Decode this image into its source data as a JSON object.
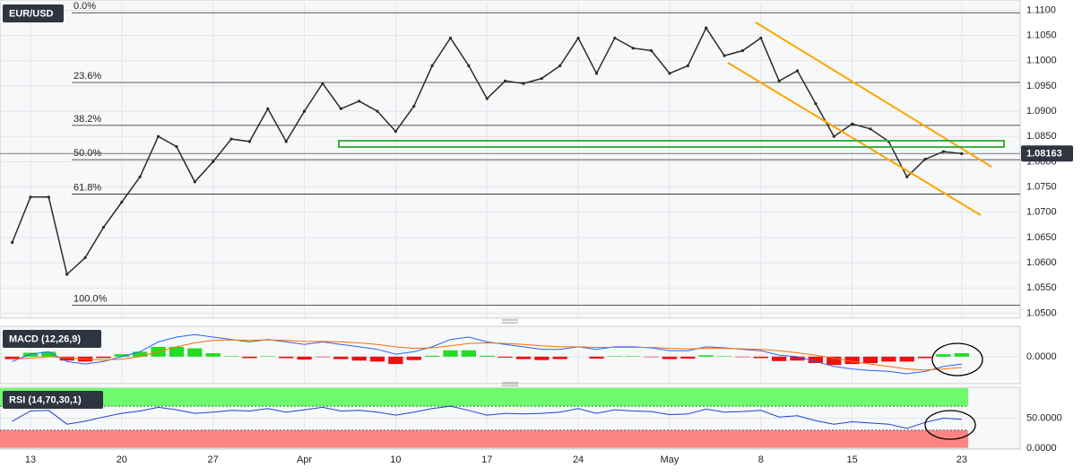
{
  "chart_data": [
    {
      "type": "line",
      "title": "EUR/USD",
      "categories": [
        null,
        "13",
        null,
        null,
        null,
        null,
        "20",
        null,
        null,
        null,
        null,
        "27",
        null,
        null,
        null,
        null,
        "Apr",
        null,
        null,
        null,
        null,
        "10",
        null,
        null,
        null,
        null,
        "17",
        null,
        null,
        null,
        null,
        "24",
        null,
        null,
        null,
        null,
        "May",
        null,
        null,
        null,
        null,
        "8",
        null,
        null,
        null,
        null,
        "15",
        null,
        null,
        null,
        null,
        null,
        "23"
      ],
      "values": [
        1.064,
        1.073,
        1.073,
        1.0577,
        1.061,
        1.067,
        1.072,
        1.077,
        1.085,
        1.083,
        1.076,
        1.08,
        1.0845,
        1.084,
        1.0905,
        1.084,
        1.09,
        1.0955,
        1.0905,
        1.092,
        1.09,
        1.086,
        1.091,
        1.099,
        1.1045,
        1.099,
        1.0925,
        1.096,
        1.0955,
        1.0965,
        1.099,
        1.1045,
        1.0975,
        1.1045,
        1.1025,
        1.102,
        1.0975,
        1.099,
        1.1065,
        1.101,
        1.102,
        1.1045,
        1.096,
        1.098,
        1.0915,
        1.085,
        1.0875,
        1.0865,
        1.084,
        1.077,
        1.0805,
        1.082,
        1.0816
      ],
      "color": "#2b2b2b",
      "ylim": [
        1.049,
        1.1115
      ],
      "yticks": [
        {
          "value": 1.05,
          "label": "1.0500"
        },
        {
          "value": 1.055,
          "label": "1.0550"
        },
        {
          "value": 1.06,
          "label": "1.0600"
        },
        {
          "value": 1.065,
          "label": "1.0650"
        },
        {
          "value": 1.07,
          "label": "1.0700"
        },
        {
          "value": 1.075,
          "label": "1.0750"
        },
        {
          "value": 1.08,
          "label": "1.0800"
        },
        {
          "value": 1.085,
          "label": "1.0850"
        },
        {
          "value": 1.09,
          "label": "1.0900"
        },
        {
          "value": 1.095,
          "label": "1.0950"
        },
        {
          "value": 1.1,
          "label": "1.1000"
        },
        {
          "value": 1.105,
          "label": "1.1050"
        },
        {
          "value": 1.11,
          "label": "1.1100"
        }
      ],
      "grid": true,
      "fib_levels": [
        {
          "label": "0.0%",
          "value": 1.1095
        },
        {
          "label": "23.6%",
          "value": 1.0957
        },
        {
          "label": "38.2%",
          "value": 1.0872
        },
        {
          "label": "50.0%",
          "value": 1.0804
        },
        {
          "label": "61.8%",
          "value": 1.0736
        },
        {
          "label": "100.0%",
          "value": 1.0516
        }
      ],
      "last_price": 1.08163
    },
    {
      "type": "macd",
      "title": "MACD (12,26,9)",
      "series": [
        {
          "color": "#2962ff",
          "values": [
            -0.001,
            0.0005,
            0.001,
            -0.001,
            -0.0015,
            -0.001,
            0,
            0.001,
            0.003,
            0.004,
            0.0045,
            0.004,
            0.0035,
            0.003,
            0.0035,
            0.003,
            0.0025,
            0.003,
            0.0025,
            0.002,
            0.0015,
            0.0005,
            0.001,
            0.002,
            0.0035,
            0.004,
            0.003,
            0.0025,
            0.002,
            0.0015,
            0.0015,
            0.002,
            0.0015,
            0.002,
            0.002,
            0.0018,
            0.0012,
            0.0012,
            0.002,
            0.0018,
            0.0015,
            0.0012,
            0.0003,
            0,
            -0.001,
            -0.002,
            -0.0025,
            -0.0028,
            -0.003,
            -0.0035,
            -0.003,
            -0.002,
            -0.0015
          ]
        },
        {
          "color": "#ff6d00",
          "values": [
            -0.0005,
            -0.0003,
            0,
            -0.0002,
            -0.0005,
            -0.0007,
            -0.0005,
            0,
            0.001,
            0.002,
            0.0028,
            0.0033,
            0.0034,
            0.0033,
            0.0034,
            0.0033,
            0.0031,
            0.0031,
            0.003,
            0.0028,
            0.0025,
            0.002,
            0.0017,
            0.0018,
            0.0022,
            0.0027,
            0.0028,
            0.0027,
            0.0025,
            0.0022,
            0.002,
            0.002,
            0.0019,
            0.0019,
            0.0019,
            0.0019,
            0.0017,
            0.0016,
            0.0017,
            0.0017,
            0.0016,
            0.0015,
            0.0012,
            0.0008,
            0.0003,
            -0.0003,
            -0.001,
            -0.0015,
            -0.002,
            -0.0025,
            -0.0027,
            -0.0025,
            -0.0022
          ]
        }
      ],
      "histogram": [
        -0.0005,
        0.0008,
        0.001,
        -0.0008,
        -0.001,
        -0.0003,
        0.0005,
        0.001,
        0.002,
        0.002,
        0.0017,
        0.0007,
        0.0001,
        -0.0003,
        0.0001,
        -0.0003,
        -0.0006,
        -0.0001,
        -0.0005,
        -0.0008,
        -0.001,
        -0.0015,
        -0.0007,
        0.0002,
        0.0013,
        0.0013,
        0.0002,
        -0.0002,
        -0.0005,
        -0.0007,
        -0.0005,
        0,
        -0.0004,
        0.0001,
        0.0001,
        -0.0001,
        -0.0005,
        -0.0004,
        0.0003,
        0.0001,
        -0.0001,
        -0.0003,
        -0.0009,
        -0.0008,
        -0.0013,
        -0.0017,
        -0.0015,
        -0.0013,
        -0.001,
        -0.001,
        -0.0003,
        0.0005,
        0.0007
      ],
      "up_color": "#22dd22",
      "down_color": "#ee1111",
      "ylim": [
        -0.0055,
        0.006
      ],
      "yticks": [
        {
          "value": 0,
          "label": "0.0000"
        }
      ]
    },
    {
      "type": "rsi",
      "title": "RSI (14,70,30,1)",
      "values": [
        45,
        62,
        63,
        40,
        45,
        52,
        58,
        62,
        68,
        64,
        58,
        60,
        63,
        62,
        66,
        60,
        64,
        68,
        62,
        63,
        60,
        55,
        60,
        66,
        70,
        63,
        55,
        58,
        57,
        58,
        60,
        66,
        58,
        64,
        62,
        61,
        56,
        57,
        65,
        60,
        61,
        63,
        52,
        54,
        46,
        40,
        44,
        42,
        40,
        33,
        43,
        50,
        48
      ],
      "color": "#1f3fd6",
      "ylim": [
        0,
        100
      ],
      "yticks": [
        {
          "value": 50,
          "label": "50.0000"
        },
        {
          "value": 0,
          "label": "0.0000"
        }
      ],
      "overbought": 70,
      "oversold": 30,
      "overbought_color": "#6dfb6d",
      "oversold_color": "#ff8585"
    }
  ]
}
